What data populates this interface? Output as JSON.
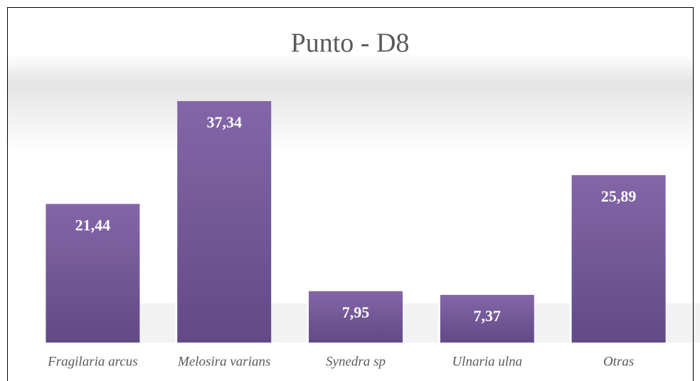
{
  "chart_data": {
    "type": "bar",
    "title": "Punto - D8",
    "categories": [
      "Fragilaria arcus",
      "Melosira varians",
      "Synedra sp",
      "Ulnaria ulna",
      "Otras"
    ],
    "values": [
      21.44,
      37.34,
      7.95,
      7.37,
      25.89
    ],
    "value_labels": [
      "21,44",
      "37,34",
      "7,95",
      "7,37",
      "25,89"
    ],
    "color": "#7d60a0"
  }
}
